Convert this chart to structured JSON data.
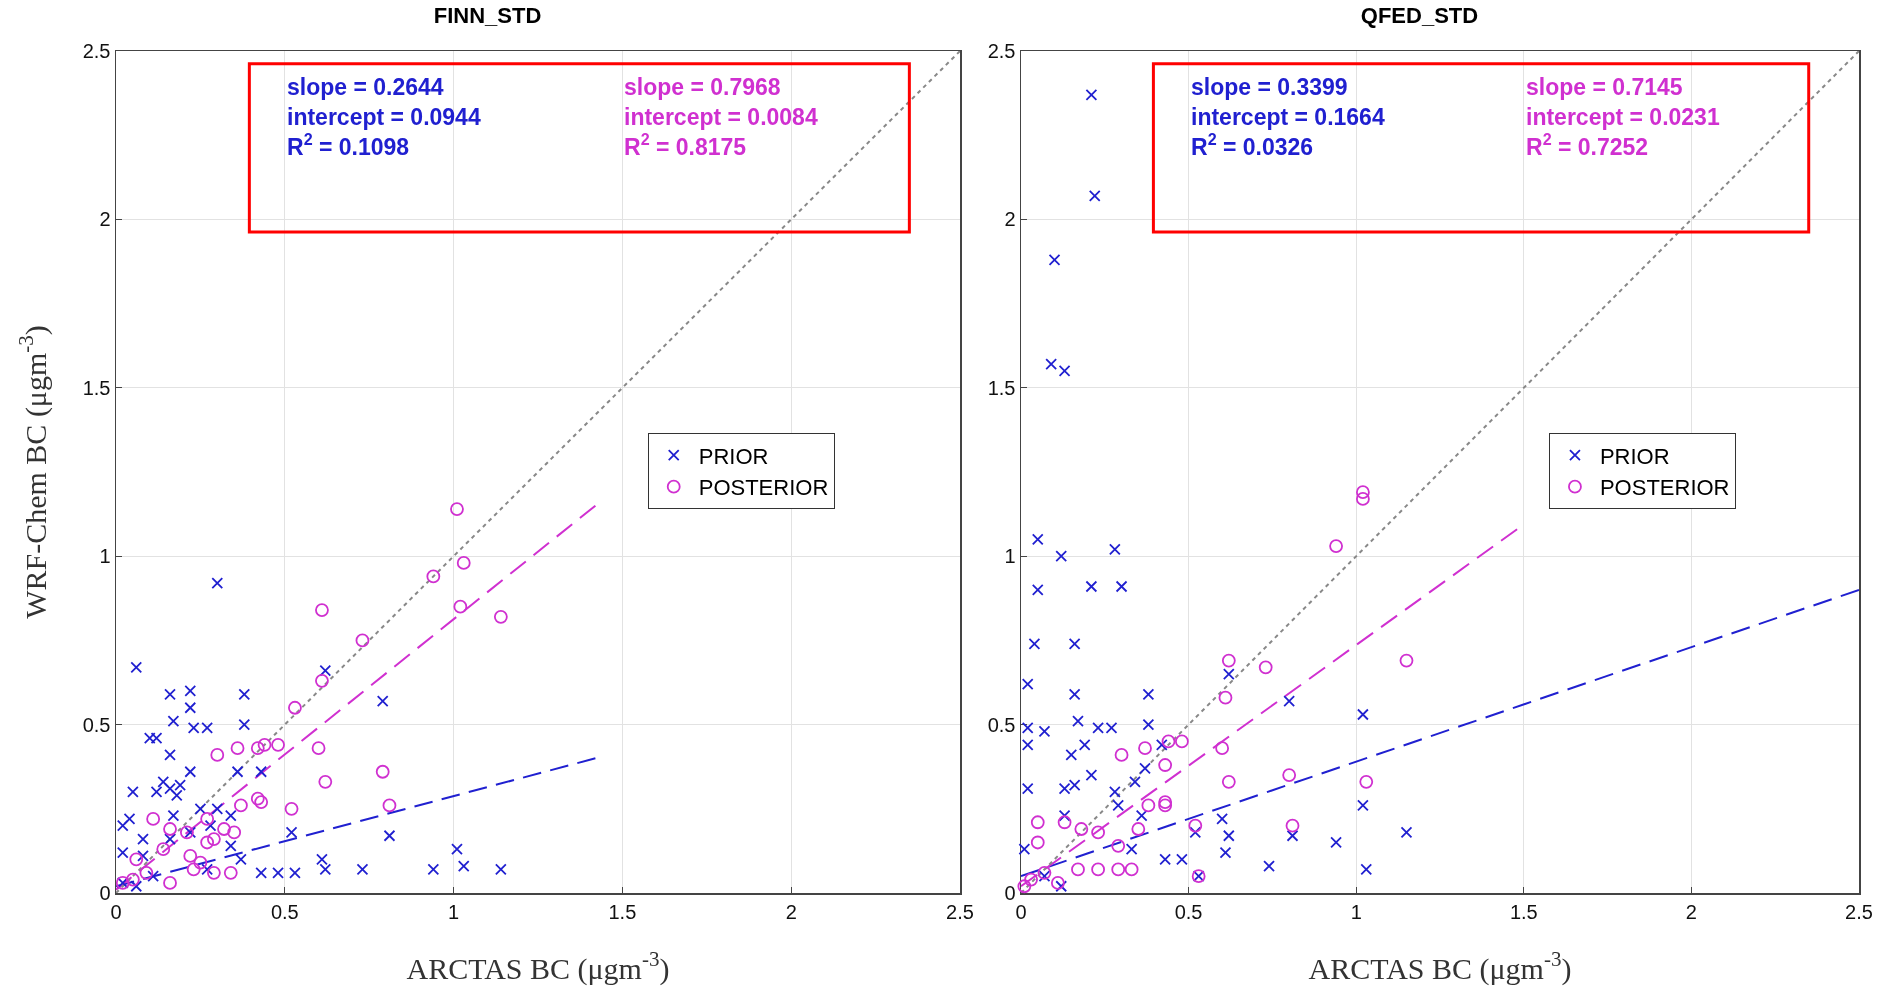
{
  "chart_data": [
    {
      "type": "scatter",
      "title": "FINN_STD",
      "xlabel": "ARCTAS BC (μgm$^{-3}$)",
      "ylabel": "WRF-Chem BC (μgm$^{-3}$)",
      "xlim": [
        0,
        2.5
      ],
      "ylim": [
        0,
        2.5
      ],
      "xticks": [
        0,
        0.5,
        1,
        1.5,
        2,
        2.5
      ],
      "yticks": [
        0,
        0.5,
        1,
        1.5,
        2,
        2.5
      ],
      "grid": true,
      "legend": "right",
      "annotations": [
        "slope = 0.2644\nintercept = 0.0944\nR$^{2}$ = 0.1098",
        "slope = 0.7968\nintercept = 0.0084\nR$^{2}$ = 0.8175"
      ],
      "series": [
        {
          "name": "PRIOR",
          "color": "#2020d0",
          "marker": "cross",
          "x": [
            0.3,
            0.06,
            0.16,
            0.22,
            0.22,
            0.17,
            0.38,
            0.38,
            0.23,
            0.27,
            0.1,
            0.12,
            0.62,
            0.79,
            0.16,
            0.22,
            0.36,
            0.43,
            0.05,
            0.12,
            0.16,
            0.18,
            0.52,
            0.81,
            1.01,
            1.03,
            0.94,
            0.73,
            1.14,
            0.61,
            0.62,
            0.53,
            0.43,
            0.48,
            0.37,
            0.34,
            0.28,
            0.02,
            0.04,
            0.02,
            0.08,
            0.17,
            0.25,
            0.3,
            0.34,
            0.11,
            0.06,
            0.02,
            0.16,
            0.22,
            0.14,
            0.19,
            0.08,
            0.27
          ],
          "values": [
            0.92,
            0.67,
            0.59,
            0.6,
            0.55,
            0.51,
            0.59,
            0.5,
            0.49,
            0.49,
            0.46,
            0.46,
            0.66,
            0.57,
            0.41,
            0.36,
            0.36,
            0.36,
            0.3,
            0.3,
            0.31,
            0.29,
            0.18,
            0.17,
            0.13,
            0.08,
            0.07,
            0.07,
            0.07,
            0.1,
            0.07,
            0.06,
            0.06,
            0.06,
            0.1,
            0.14,
            0.2,
            0.2,
            0.22,
            0.12,
            0.11,
            0.23,
            0.25,
            0.25,
            0.23,
            0.05,
            0.02,
            0.03,
            0.16,
            0.18,
            0.33,
            0.32,
            0.16,
            0.07
          ]
        },
        {
          "name": "POSTERIOR",
          "color": "#d030d0",
          "marker": "circle",
          "x": [
            1.01,
            1.03,
            0.94,
            1.02,
            1.14,
            0.61,
            0.73,
            0.61,
            0.53,
            0.3,
            0.36,
            0.42,
            0.44,
            0.48,
            0.6,
            0.79,
            0.62,
            0.81,
            0.52,
            0.37,
            0.43,
            0.42,
            0.35,
            0.32,
            0.27,
            0.23,
            0.29,
            0.34,
            0.25,
            0.11,
            0.16,
            0.21,
            0.14,
            0.06,
            0.02,
            0.05,
            0.09,
            0.16,
            0.22,
            0.27,
            0.29
          ],
          "values": [
            1.14,
            0.98,
            0.94,
            0.85,
            0.82,
            0.84,
            0.75,
            0.63,
            0.55,
            0.41,
            0.43,
            0.43,
            0.44,
            0.44,
            0.43,
            0.36,
            0.33,
            0.26,
            0.25,
            0.26,
            0.27,
            0.28,
            0.18,
            0.19,
            0.15,
            0.07,
            0.06,
            0.06,
            0.09,
            0.22,
            0.19,
            0.18,
            0.13,
            0.1,
            0.03,
            0.04,
            0.06,
            0.03,
            0.11,
            0.22,
            0.16
          ]
        },
        {
          "type": "line",
          "color": "#2020d0",
          "line_style": "dashed",
          "x": [
            0,
            1.42
          ],
          "values": [
            0.02,
            0.4
          ]
        },
        {
          "type": "line",
          "color": "#d030d0",
          "line_style": "dashed",
          "x": [
            0,
            1.42
          ],
          "values": [
            0.01,
            1.15
          ]
        },
        {
          "type": "line",
          "color": "#888888",
          "line_style": "dotted",
          "x": [
            0,
            2.5
          ],
          "values": [
            0,
            2.5
          ]
        }
      ]
    },
    {
      "type": "scatter",
      "title": "QFED_STD",
      "xlabel": "ARCTAS BC (μgm$^{-3}$)",
      "xlim": [
        0,
        2.5
      ],
      "ylim": [
        0,
        2.5
      ],
      "xticks": [
        0,
        0.5,
        1,
        1.5,
        2,
        2.5
      ],
      "yticks": [
        0,
        0.5,
        1,
        1.5,
        2,
        2.5
      ],
      "grid": true,
      "legend": "right",
      "annotations": [
        "slope = 0.3399\nintercept = 0.1664\nR$^{2}$ = 0.0326",
        "slope = 0.7145\nintercept = 0.0231\nR$^{2}$ = 0.7252"
      ],
      "series": [
        {
          "name": "PRIOR",
          "color": "#2020d0",
          "marker": "cross",
          "x": [
            0.21,
            0.22,
            0.1,
            0.09,
            0.13,
            0.05,
            0.12,
            0.28,
            0.05,
            0.21,
            0.3,
            0.04,
            0.16,
            0.02,
            0.16,
            0.38,
            0.62,
            0.8,
            1.02,
            0.02,
            0.07,
            0.17,
            0.23,
            0.27,
            0.38,
            0.02,
            0.19,
            0.15,
            0.42,
            0.37,
            0.21,
            0.34,
            0.02,
            0.13,
            0.16,
            0.28,
            0.29,
            0.36,
            1.02,
            0.6,
            0.62,
            1.15,
            0.81,
            0.94,
            0.52,
            0.61,
            0.43,
            0.48,
            0.74,
            1.03,
            0.53,
            0.33,
            0.01,
            0.13,
            0.07,
            0.12
          ],
          "values": [
            2.37,
            2.07,
            1.88,
            1.57,
            1.55,
            1.05,
            1.0,
            1.02,
            0.9,
            0.91,
            0.91,
            0.74,
            0.74,
            0.62,
            0.59,
            0.59,
            0.65,
            0.57,
            0.53,
            0.49,
            0.48,
            0.51,
            0.49,
            0.49,
            0.5,
            0.44,
            0.44,
            0.41,
            0.44,
            0.37,
            0.35,
            0.33,
            0.31,
            0.31,
            0.32,
            0.3,
            0.26,
            0.23,
            0.26,
            0.22,
            0.17,
            0.18,
            0.17,
            0.15,
            0.18,
            0.12,
            0.1,
            0.1,
            0.08,
            0.07,
            0.05,
            0.13,
            0.13,
            0.23,
            0.05,
            0.02
          ]
        },
        {
          "name": "POSTERIOR",
          "color": "#d030d0",
          "marker": "circle",
          "x": [
            1.02,
            1.02,
            0.94,
            1.15,
            0.62,
            0.73,
            0.61,
            0.3,
            0.37,
            0.44,
            0.48,
            0.43,
            0.6,
            0.8,
            0.62,
            1.03,
            0.81,
            0.52,
            0.53,
            0.43,
            0.43,
            0.38,
            0.35,
            0.23,
            0.29,
            0.33,
            0.17,
            0.05,
            0.13,
            0.18,
            0.23,
            0.29,
            0.05,
            0.03,
            0.07,
            0.11,
            0.01
          ],
          "values": [
            1.19,
            1.17,
            1.03,
            0.69,
            0.69,
            0.67,
            0.58,
            0.41,
            0.43,
            0.45,
            0.45,
            0.38,
            0.43,
            0.35,
            0.33,
            0.33,
            0.2,
            0.2,
            0.05,
            0.27,
            0.26,
            0.26,
            0.19,
            0.07,
            0.07,
            0.07,
            0.07,
            0.21,
            0.21,
            0.19,
            0.18,
            0.14,
            0.15,
            0.04,
            0.06,
            0.03,
            0.02
          ]
        },
        {
          "type": "line",
          "color": "#2020d0",
          "line_style": "dashed",
          "x": [
            0,
            2.5
          ],
          "values": [
            0.05,
            0.9
          ]
        },
        {
          "type": "line",
          "color": "#d030d0",
          "line_style": "dashed",
          "x": [
            0,
            1.48
          ],
          "values": [
            0.02,
            1.08
          ]
        },
        {
          "type": "line",
          "color": "#888888",
          "line_style": "dotted",
          "x": [
            0,
            2.5
          ],
          "values": [
            0,
            2.5
          ]
        }
      ]
    }
  ]
}
